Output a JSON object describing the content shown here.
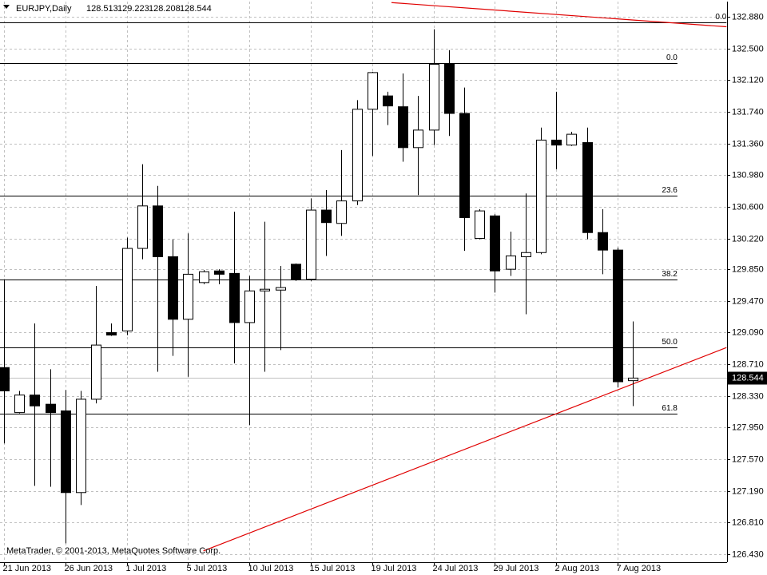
{
  "chart_data": {
    "type": "candlestick",
    "symbol": "EURJPY,Daily",
    "copyright": "MetaTrader, © 2001-2013, MetaQuotes Software Corp.",
    "categories": [
      "21 Jun 2013",
      null,
      null,
      null,
      "26 Jun 2013",
      null,
      null,
      null,
      "1 Jul 2013",
      null,
      null,
      null,
      "5 Jul 2013",
      null,
      null,
      null,
      "10 Jul 2013",
      null,
      null,
      null,
      "15 Jul 2013",
      null,
      null,
      null,
      "19 Jul 2013",
      null,
      null,
      null,
      "24 Jul 2013",
      null,
      null,
      null,
      "29 Jul 2013",
      null,
      null,
      null,
      "2 Aug 2013",
      null,
      null,
      null,
      "7 Aug 2013",
      null
    ],
    "open": [
      128.67,
      128.13,
      128.34,
      128.23,
      128.15,
      127.17,
      128.29,
      129.09,
      129.11,
      130.1,
      130.61,
      130.0,
      129.25,
      129.69,
      129.83,
      129.8,
      129.21,
      129.59,
      129.6,
      129.91,
      129.73,
      130.56,
      130.4,
      130.67,
      131.77,
      131.93,
      131.8,
      131.31,
      131.52,
      132.31,
      131.72,
      130.22,
      130.49,
      129.85,
      130.0,
      130.05,
      131.4,
      131.34,
      131.37,
      130.29,
      130.08,
      128.513
    ],
    "high": [
      129.73,
      128.39,
      129.2,
      128.65,
      128.4,
      128.39,
      129.65,
      129.2,
      130.23,
      131.11,
      130.85,
      130.21,
      130.28,
      129.84,
      129.85,
      130.54,
      129.77,
      130.42,
      129.89,
      129.92,
      130.7,
      130.8,
      131.28,
      131.88,
      132.22,
      131.98,
      132.2,
      131.93,
      132.73,
      132.48,
      132.03,
      130.57,
      130.51,
      130.3,
      130.76,
      131.55,
      131.98,
      131.5,
      131.55,
      130.57,
      130.11,
      129.223
    ],
    "low": [
      127.76,
      128.12,
      127.25,
      127.24,
      126.56,
      127.02,
      128.24,
      129.05,
      129.06,
      129.97,
      128.62,
      128.81,
      128.56,
      129.67,
      129.67,
      128.72,
      127.98,
      128.62,
      128.88,
      129.71,
      129.71,
      130.01,
      130.25,
      130.62,
      131.21,
      131.58,
      131.14,
      130.74,
      131.34,
      131.45,
      130.07,
      130.21,
      129.57,
      129.77,
      129.31,
      130.03,
      131.05,
      131.33,
      130.21,
      129.79,
      128.43,
      128.208
    ],
    "close": [
      128.39,
      128.34,
      128.21,
      128.13,
      127.17,
      128.29,
      128.94,
      129.06,
      130.1,
      130.61,
      130.0,
      129.25,
      129.79,
      129.82,
      129.79,
      129.21,
      129.59,
      129.61,
      129.63,
      129.73,
      130.56,
      130.41,
      130.67,
      131.77,
      132.21,
      131.81,
      131.31,
      131.52,
      132.31,
      131.72,
      130.47,
      130.55,
      129.83,
      130.01,
      130.05,
      131.4,
      131.34,
      131.47,
      130.29,
      130.08,
      128.5,
      128.544
    ],
    "bull_color": "#ffffff",
    "bear_color": "#000000",
    "ylim": [
      126.334,
      133.062
    ],
    "yticks": [
      {
        "value": 132.88,
        "label": "132.880"
      },
      {
        "value": 132.5,
        "label": "132.500"
      },
      {
        "value": 132.12,
        "label": "132.120"
      },
      {
        "value": 131.74,
        "label": "131.740"
      },
      {
        "value": 131.36,
        "label": "131.360"
      },
      {
        "value": 130.98,
        "label": "130.980"
      },
      {
        "value": 130.6,
        "label": "130.600"
      },
      {
        "value": 130.22,
        "label": "130.220"
      },
      {
        "value": 129.85,
        "label": "129.850"
      },
      {
        "value": 129.47,
        "label": "129.470"
      },
      {
        "value": 129.09,
        "label": "129.090"
      },
      {
        "value": 128.71,
        "label": "128.710"
      },
      {
        "value": 128.33,
        "label": "128.330"
      },
      {
        "value": 127.95,
        "label": "127.950"
      },
      {
        "value": 127.57,
        "label": "127.570"
      },
      {
        "value": 127.19,
        "label": "127.190"
      },
      {
        "value": 126.81,
        "label": "126.810"
      },
      {
        "value": 126.43,
        "label": "126.430"
      }
    ],
    "grid": true,
    "fibonacci": [
      {
        "end": 47.1,
        "levels": [
          {
            "label": "0.0",
            "price": 132.81
          }
        ]
      },
      {
        "end": 43.9,
        "levels": [
          {
            "label": "0.0",
            "price": 132.32
          },
          {
            "label": "23.6",
            "price": 130.73
          },
          {
            "label": "38.2",
            "price": 129.73
          },
          {
            "label": "50.0",
            "price": 128.91
          },
          {
            "label": "61.8",
            "price": 128.12
          }
        ]
      }
    ],
    "trend_lines": [
      {
        "color": "#e00000",
        "x": [
          25.26,
          47.1
        ],
        "price": [
          133.05,
          132.76
        ]
      },
      {
        "color": "#e00000",
        "x": [
          13.0,
          47.1
        ],
        "price": [
          126.47,
          128.91
        ]
      }
    ]
  }
}
